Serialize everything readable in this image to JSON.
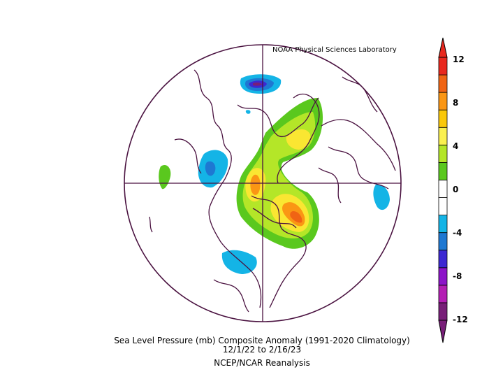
{
  "credit": "NOAA Physical Sciences Laboratory",
  "caption": {
    "line1": "Sea Level Pressure (mb) Composite Anomaly (1991-2020 Climatology)",
    "line2": "12/1/22   to 2/16/23",
    "line3": "NCEP/NCAR Reanalysis"
  },
  "colorbar": {
    "labels": [
      "12",
      "8",
      "4",
      "0",
      "-4",
      "-8",
      "-12"
    ],
    "colors": [
      "#e8281e",
      "#f06414",
      "#fa9614",
      "#fac80a",
      "#faf050",
      "#b4e628",
      "#5ac81e",
      "#ffffff",
      "#ffffff",
      "#14b4e6",
      "#1e78d2",
      "#3c28d2",
      "#8c14c8",
      "#b41eb4",
      "#781e78"
    ]
  },
  "map": {
    "projection": "north polar stereographic",
    "colors": {
      "outline": "#4a1240",
      "green": "#5ac81e",
      "lightgreen": "#b4e628",
      "yellow": "#fae632",
      "orange": "#fa9614",
      "deeporange": "#f06414",
      "red": "#e8281e",
      "cyan": "#14b4e6",
      "blue": "#1e78d2",
      "violet": "#3c28d2",
      "purple": "#781e78"
    }
  }
}
